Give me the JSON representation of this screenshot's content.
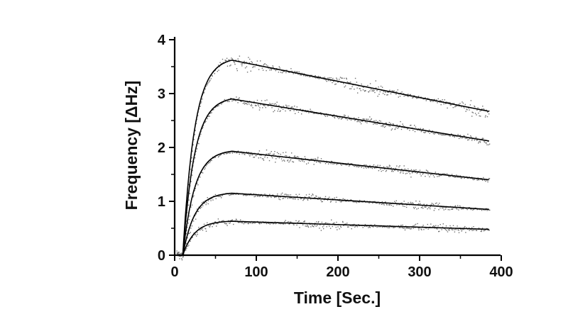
{
  "chart_data": {
    "type": "line",
    "title": "",
    "xlabel": "Time [Sec.]",
    "ylabel": "Frequency [ΔHz]",
    "xlim": [
      0,
      400
    ],
    "ylim": [
      0,
      4
    ],
    "x_ticks": [
      "0",
      "100",
      "200",
      "300",
      "400"
    ],
    "y_ticks": [
      "0",
      "1",
      "2",
      "3",
      "4"
    ],
    "grid": false,
    "legend": "none",
    "colors": {
      "fit": "#000000",
      "data": "#6f6f6f"
    },
    "series": [
      {
        "x": [
          10,
          70,
          385
        ],
        "y": [
          0,
          0.63,
          0.48
        ],
        "noise": 0.045
      },
      {
        "x": [
          10,
          70,
          385
        ],
        "y": [
          0,
          1.15,
          0.85
        ],
        "noise": 0.045
      },
      {
        "x": [
          10,
          70,
          385
        ],
        "y": [
          0,
          1.93,
          1.4
        ],
        "noise": 0.055
      },
      {
        "x": [
          10,
          70,
          385
        ],
        "y": [
          0,
          2.9,
          2.12
        ],
        "noise": 0.055
      },
      {
        "x": [
          10,
          70,
          385
        ],
        "y": [
          0,
          3.62,
          2.67
        ],
        "noise": 0.07
      }
    ]
  }
}
